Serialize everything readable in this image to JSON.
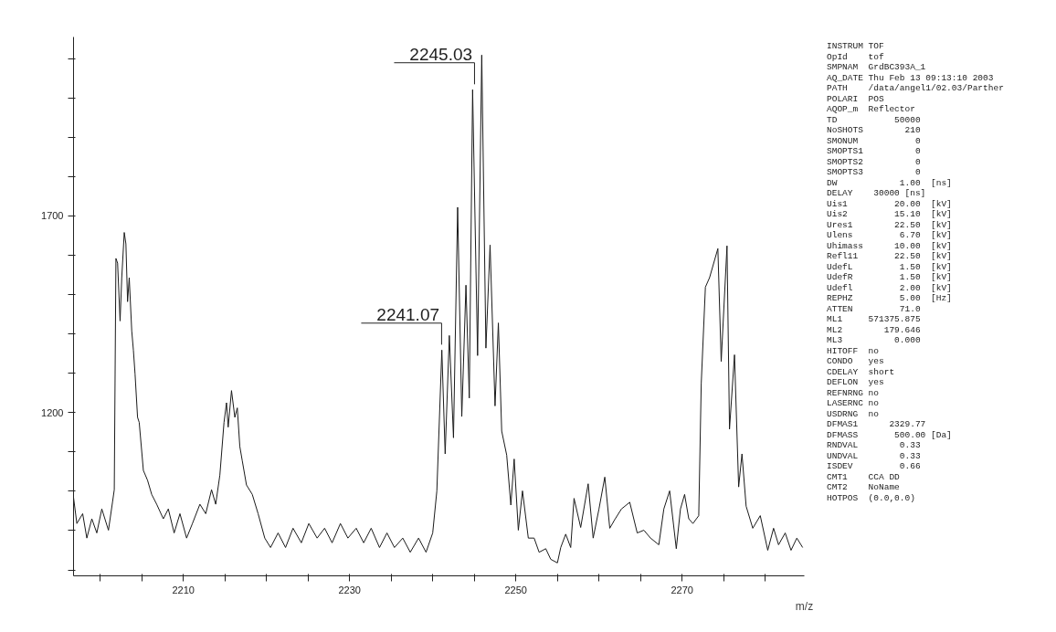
{
  "chart_data": {
    "type": "line",
    "xlabel": "m/z",
    "grid": false,
    "marker": "none",
    "line_style": "solid",
    "xlim": [
      2196.8,
      2284.7
    ],
    "ylim": [
      785,
      2155
    ],
    "xticks": [
      {
        "value": 2200,
        "label": null
      },
      {
        "value": 2205,
        "label": null
      },
      2210,
      {
        "value": 2215,
        "label": null
      },
      {
        "value": 2220,
        "label": null
      },
      {
        "value": 2225,
        "label": null
      },
      2230,
      {
        "value": 2235,
        "label": null
      },
      {
        "value": 2240,
        "label": null
      },
      {
        "value": 2245,
        "label": null
      },
      2250,
      {
        "value": 2255,
        "label": null
      },
      {
        "value": 2260,
        "label": null
      },
      {
        "value": 2265,
        "label": null
      },
      2270,
      {
        "value": 2275,
        "label": null
      },
      {
        "value": 2280,
        "label": null
      }
    ],
    "yticks": [
      {
        "value": 800,
        "label": null
      },
      {
        "value": 900,
        "label": null
      },
      {
        "value": 1000,
        "label": null
      },
      {
        "value": 1100,
        "label": null
      },
      1200,
      {
        "value": 1300,
        "label": null
      },
      {
        "value": 1400,
        "label": null
      },
      {
        "value": 1500,
        "label": null
      },
      {
        "value": 1600,
        "label": null
      },
      1700,
      {
        "value": 1800,
        "label": null
      },
      {
        "value": 1900,
        "label": null
      },
      {
        "value": 2000,
        "label": null
      },
      {
        "value": 2100,
        "label": null
      }
    ],
    "series": [
      {
        "color": "#1a1a1a",
        "x": [
          2196.8,
          2197.2,
          2197.9,
          2198.4,
          2199.0,
          2199.6,
          2200.2,
          2201.0,
          2201.5,
          2201.7,
          2201.9,
          2202.1,
          2202.4,
          2202.6,
          2202.9,
          2203.1,
          2203.3,
          2203.5,
          2203.8,
          2204.0,
          2204.2,
          2204.5,
          2204.7,
          2205.2,
          2205.7,
          2206.2,
          2206.8,
          2207.6,
          2208.2,
          2208.9,
          2209.6,
          2210.4,
          2211.1,
          2212.0,
          2212.7,
          2213.4,
          2213.9,
          2214.4,
          2214.9,
          2215.2,
          2215.4,
          2215.8,
          2216.2,
          2216.5,
          2216.8,
          2217.1,
          2217.6,
          2218.3,
          2219.0,
          2219.8,
          2220.5,
          2221.4,
          2222.3,
          2223.2,
          2224.2,
          2225.1,
          2226.1,
          2227.0,
          2227.9,
          2228.9,
          2229.8,
          2230.8,
          2231.7,
          2232.6,
          2233.6,
          2234.5,
          2235.4,
          2236.4,
          2237.3,
          2238.3,
          2239.2,
          2240.0,
          2240.5,
          2241.1,
          2241.5,
          2242.0,
          2242.5,
          2243.0,
          2243.5,
          2244.0,
          2244.4,
          2244.8,
          2245.4,
          2245.9,
          2246.4,
          2246.9,
          2247.5,
          2247.9,
          2248.3,
          2248.9,
          2249.4,
          2249.8,
          2250.3,
          2250.8,
          2251.5,
          2252.2,
          2252.8,
          2253.6,
          2254.2,
          2255.0,
          2255.4,
          2256.0,
          2256.6,
          2257.0,
          2257.8,
          2258.7,
          2259.3,
          2260.0,
          2260.7,
          2261.3,
          2261.9,
          2262.7,
          2263.7,
          2264.6,
          2265.4,
          2266.2,
          2267.2,
          2267.8,
          2268.5,
          2269.3,
          2269.8,
          2270.3,
          2270.8,
          2271.3,
          2272.0,
          2272.3,
          2272.8,
          2273.3,
          2274.3,
          2274.7,
          2275.4,
          2275.7,
          2276.3,
          2276.8,
          2277.2,
          2277.7,
          2278.5,
          2279.4,
          2280.3,
          2281.0,
          2281.6,
          2282.4,
          2283.1,
          2283.8,
          2284.5
        ],
        "values": [
          984,
          918,
          943,
          881,
          930,
          894,
          955,
          901,
          974,
          1004,
          1592,
          1580,
          1433,
          1543,
          1658,
          1629,
          1482,
          1543,
          1408,
          1359,
          1298,
          1188,
          1175,
          1053,
          1028,
          992,
          967,
          930,
          955,
          894,
          943,
          881,
          918,
          967,
          943,
          1004,
          967,
          1041,
          1175,
          1225,
          1163,
          1256,
          1188,
          1212,
          1114,
          1077,
          1016,
          992,
          943,
          881,
          857,
          894,
          857,
          906,
          869,
          918,
          881,
          906,
          869,
          918,
          881,
          906,
          869,
          906,
          857,
          894,
          857,
          881,
          845,
          881,
          845,
          894,
          1001,
          1359,
          1095,
          1396,
          1136,
          1722,
          1190,
          1524,
          1237,
          2021,
          1345,
          2109,
          1364,
          1626,
          1217,
          1428,
          1153,
          1092,
          965,
          1082,
          901,
          1001,
          881,
          881,
          845,
          854,
          827,
          818,
          857,
          891,
          857,
          982,
          908,
          1019,
          881,
          955,
          1036,
          906,
          928,
          955,
          972,
          894,
          901,
          881,
          864,
          955,
          1001,
          854,
          955,
          992,
          930,
          918,
          938,
          1274,
          1519,
          1543,
          1617,
          1330,
          1624,
          1158,
          1347,
          1011,
          1095,
          962,
          906,
          938,
          850,
          906,
          864,
          894,
          850,
          881,
          857
        ]
      }
    ],
    "annotations": [
      {
        "text": "2245.03",
        "x": 2245.03,
        "y": 2021
      },
      {
        "text": "2241.07",
        "x": 2241.07,
        "y": 1359
      },
      "INSTRUM TOF",
      "OpId    tof",
      "SMPNAM  GrdBC393A_1",
      "AQ_DATE Thu Feb 13 09:13:10 2003",
      "PATH    /data/angel1/02.03/Parther",
      "POLARI  POS",
      "AQOP_m  Reflector",
      "TD           50000",
      "NoSHOTS        210",
      "SMONUM           0",
      "SMOPTS1          0",
      "SMOPTS2          0",
      "SMOPTS3          0",
      "DW            1.00  [ns]",
      "DELAY    30000 [ns]",
      "Uis1         20.00  [kV]",
      "Uis2         15.10  [kV]",
      "Ures1        22.50  [kV]",
      "Ulens         6.70  [kV]",
      "Uhimass      10.00  [kV]",
      "Refl11       22.50  [kV]",
      "UdefL         1.50  [kV]",
      "UdefR         1.50  [kV]",
      "Udefl         2.00  [kV]",
      "REPHZ         5.00  [Hz]",
      "ATTEN         71.0",
      "ML1     571375.875",
      "ML2        179.646",
      "ML3          0.000",
      "HITOFF  no",
      "CONDO   yes",
      "CDELAY  short",
      "DEFLON  yes",
      "REFNRNG no",
      "LASERNC no",
      "USDRNG  no",
      "DFMAS1      2329.77",
      "DFMASS       500.00 [Da]",
      "RNDVAL        0.33",
      "UNDVAL        0.33",
      "ISDEV         0.66",
      "CMT1    CCA DD",
      "CMT2    NoName",
      "HOTPOS  (0.0,0.0)"
    ]
  }
}
